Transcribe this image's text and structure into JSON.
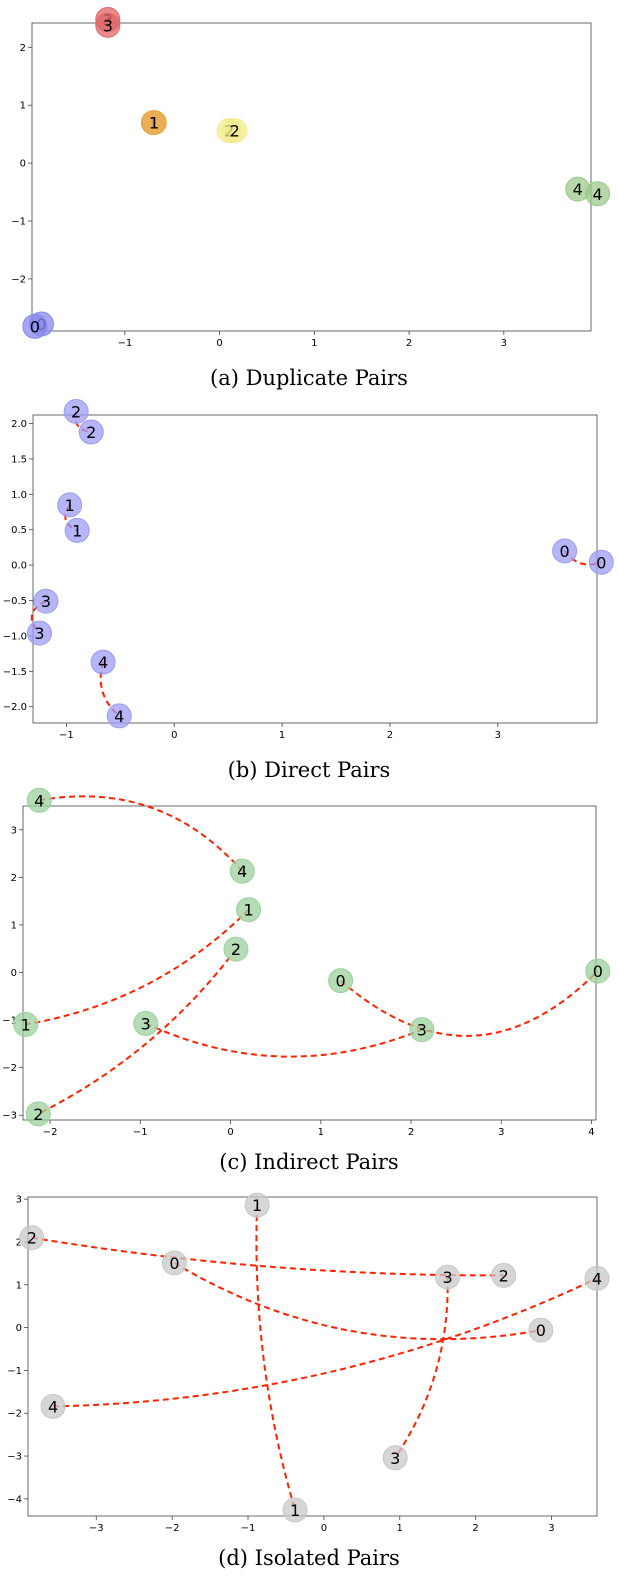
{
  "chart_data": [
    {
      "type": "scatter",
      "caption": "(a) Duplicate Pairs",
      "xlim": [
        -1.98,
        3.92
      ],
      "ylim": [
        -2.9,
        2.42
      ],
      "xticks": [
        -1,
        0,
        1,
        2,
        3
      ],
      "yticks": [
        -2,
        -1,
        0,
        1,
        2
      ],
      "grid": false,
      "connectors": false,
      "points": [
        {
          "label": "3",
          "x": -1.18,
          "y": 2.48,
          "color": "#e06666"
        },
        {
          "label": "3",
          "x": -1.18,
          "y": 2.38,
          "color": "#e06666"
        },
        {
          "label": "1",
          "x": -0.7,
          "y": 0.7,
          "color": "#e8a84a"
        },
        {
          "label": "1",
          "x": -0.69,
          "y": 0.7,
          "color": "#e8a84a"
        },
        {
          "label": "2",
          "x": 0.1,
          "y": 0.56,
          "color": "#f3ec8c"
        },
        {
          "label": "2",
          "x": 0.16,
          "y": 0.56,
          "color": "#f3ec8c"
        },
        {
          "label": "4",
          "x": 3.78,
          "y": -0.45,
          "color": "#9cc98c"
        },
        {
          "label": "4",
          "x": 3.99,
          "y": -0.53,
          "color": "#9cc98c"
        },
        {
          "label": "0",
          "x": -1.88,
          "y": -2.78,
          "color": "#8888f0"
        },
        {
          "label": "0",
          "x": -1.95,
          "y": -2.82,
          "color": "#8888f0"
        }
      ]
    },
    {
      "type": "scatter",
      "caption": "(b) Direct Pairs",
      "xlim": [
        -1.31,
        3.92
      ],
      "ylim": [
        -2.23,
        2.12
      ],
      "xticks": [
        -1,
        0,
        1,
        2,
        3
      ],
      "yticks": [
        -2.0,
        -1.5,
        -1.0,
        -0.5,
        0.0,
        0.5,
        1.0,
        1.5,
        2.0
      ],
      "grid": false,
      "connectors": true,
      "connector_color": "#ff2200",
      "points": [
        {
          "label": "2",
          "x": -0.91,
          "y": 2.17,
          "color": "#9c9cf4"
        },
        {
          "label": "2",
          "x": -0.77,
          "y": 1.88,
          "color": "#9c9cf4"
        },
        {
          "label": "1",
          "x": -0.97,
          "y": 0.85,
          "color": "#9c9cf4"
        },
        {
          "label": "1",
          "x": -0.9,
          "y": 0.49,
          "color": "#9c9cf4"
        },
        {
          "label": "0",
          "x": 3.62,
          "y": 0.2,
          "color": "#9c9cf4"
        },
        {
          "label": "0",
          "x": 3.96,
          "y": 0.04,
          "color": "#9c9cf4"
        },
        {
          "label": "3",
          "x": -1.19,
          "y": -0.51,
          "color": "#9c9cf4"
        },
        {
          "label": "3",
          "x": -1.25,
          "y": -0.96,
          "color": "#9c9cf4"
        },
        {
          "label": "4",
          "x": -0.66,
          "y": -1.37,
          "color": "#9c9cf4"
        },
        {
          "label": "4",
          "x": -0.51,
          "y": -2.13,
          "color": "#9c9cf4"
        }
      ],
      "pairs": [
        [
          0,
          1
        ],
        [
          2,
          3
        ],
        [
          4,
          5
        ],
        [
          6,
          7
        ],
        [
          8,
          9
        ]
      ]
    },
    {
      "type": "scatter",
      "caption": "(c) Indirect Pairs",
      "xlim": [
        -2.3,
        4.05
      ],
      "ylim": [
        -3.1,
        3.5
      ],
      "xticks": [
        -2,
        -1,
        0,
        1,
        2,
        3,
        4
      ],
      "yticks": [
        -3,
        -2,
        -1,
        0,
        1,
        2,
        3
      ],
      "grid": false,
      "connectors": true,
      "connector_color": "#ff2200",
      "points": [
        {
          "label": "4",
          "x": -2.12,
          "y": 3.62,
          "color": "#9cd09c"
        },
        {
          "label": "4",
          "x": 0.13,
          "y": 2.13,
          "color": "#9cd09c"
        },
        {
          "label": "1",
          "x": 0.2,
          "y": 1.32,
          "color": "#9cd09c"
        },
        {
          "label": "1",
          "x": -2.27,
          "y": -1.09,
          "color": "#9cd09c"
        },
        {
          "label": "2",
          "x": 0.06,
          "y": 0.49,
          "color": "#9cd09c"
        },
        {
          "label": "2",
          "x": -2.13,
          "y": -2.97,
          "color": "#9cd09c"
        },
        {
          "label": "0",
          "x": 1.22,
          "y": -0.17,
          "color": "#9cd09c"
        },
        {
          "label": "0",
          "x": 4.07,
          "y": 0.03,
          "color": "#9cd09c"
        },
        {
          "label": "3",
          "x": -0.94,
          "y": -1.07,
          "color": "#9cd09c"
        },
        {
          "label": "3",
          "x": 2.12,
          "y": -1.2,
          "color": "#9cd09c"
        }
      ],
      "pairs": [
        [
          0,
          1
        ],
        [
          2,
          3
        ],
        [
          4,
          5
        ],
        [
          6,
          7
        ],
        [
          8,
          9
        ]
      ]
    },
    {
      "type": "scatter",
      "caption": "(d) Isolated Pairs",
      "xlim": [
        -3.9,
        3.6
      ],
      "ylim": [
        -4.4,
        3.05
      ],
      "xticks": [
        -3,
        -2,
        -1,
        0,
        1,
        2,
        3
      ],
      "yticks": [
        -4,
        -3,
        -2,
        -1,
        0,
        1,
        2,
        3
      ],
      "grid": false,
      "connectors": true,
      "connector_color": "#ff2200",
      "points": [
        {
          "label": "1",
          "x": -0.88,
          "y": 2.86,
          "color": "#c8c8c8"
        },
        {
          "label": "1",
          "x": -0.38,
          "y": -4.26,
          "color": "#c8c8c8"
        },
        {
          "label": "2",
          "x": -3.85,
          "y": 2.1,
          "color": "#c8c8c8"
        },
        {
          "label": "2",
          "x": 2.37,
          "y": 1.22,
          "color": "#c8c8c8"
        },
        {
          "label": "0",
          "x": -1.97,
          "y": 1.51,
          "color": "#c8c8c8"
        },
        {
          "label": "0",
          "x": 2.86,
          "y": -0.06,
          "color": "#c8c8c8"
        },
        {
          "label": "3",
          "x": 1.63,
          "y": 1.18,
          "color": "#c8c8c8"
        },
        {
          "label": "3",
          "x": 0.94,
          "y": -3.04,
          "color": "#c8c8c8"
        },
        {
          "label": "4",
          "x": -3.57,
          "y": -1.84,
          "color": "#c8c8c8"
        },
        {
          "label": "4",
          "x": 3.6,
          "y": 1.15,
          "color": "#c8c8c8"
        }
      ],
      "pairs": [
        [
          0,
          1
        ],
        [
          2,
          3
        ],
        [
          4,
          5
        ],
        [
          6,
          7
        ],
        [
          8,
          9
        ]
      ]
    }
  ]
}
